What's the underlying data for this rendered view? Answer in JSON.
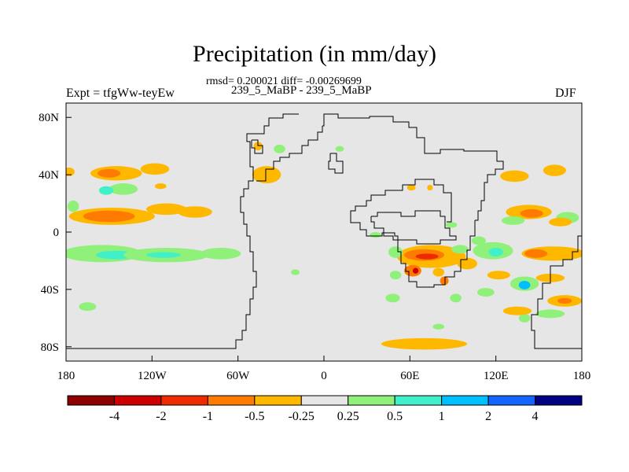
{
  "chart_data": {
    "type": "heatmap",
    "title": "Precipitation (in mm/day)",
    "stats_line": "rmsd= 0.200021 diff= -0.00269699",
    "case_line": "239_5_MaBP - 239_5_MaBP",
    "left_label": "Expt = tfgWw-teyEw",
    "right_label": "DJF",
    "x_ticks": [
      "180",
      "120W",
      "60W",
      "0",
      "60E",
      "120E",
      "180"
    ],
    "y_ticks": [
      "80N",
      "40N",
      "0",
      "40S",
      "80S"
    ],
    "xlim": [
      -180,
      180
    ],
    "ylim": [
      -90,
      90
    ],
    "colorbar": {
      "labels": [
        "-4",
        "-2",
        "-1",
        "-0.5",
        "-0.25",
        "0.25",
        "0.5",
        "1",
        "2",
        "4"
      ],
      "colors": [
        "#8b0000",
        "#cc0000",
        "#ee2a00",
        "#ff7a00",
        "#ffb800",
        "#e6e6e6",
        "#8ff07a",
        "#3ff0c8",
        "#00bfff",
        "#1464ff",
        "#000080"
      ]
    },
    "background_color": "#e6e6e6",
    "anomalies": [
      {
        "lon": 161,
        "lat": 43,
        "rlon": 8,
        "rlat": 4,
        "level": 4
      },
      {
        "lon": 133,
        "lat": 39,
        "rlon": 10,
        "rlat": 4,
        "level": 4
      },
      {
        "lon": -178,
        "lat": 42,
        "rlon": 4,
        "rlat": 3,
        "level": 4
      },
      {
        "lon": -145,
        "lat": 41,
        "rlon": 18,
        "rlat": 5,
        "level": 4
      },
      {
        "lon": -150,
        "lat": 41,
        "rlon": 8,
        "rlat": 3,
        "level": 3
      },
      {
        "lon": -118,
        "lat": 44,
        "rlon": 10,
        "rlat": 4,
        "level": 4
      },
      {
        "lon": -140,
        "lat": 30,
        "rlon": 10,
        "rlat": 4,
        "level": 6
      },
      {
        "lon": -152,
        "lat": 29,
        "rlon": 5,
        "rlat": 3,
        "level": 7
      },
      {
        "lon": -114,
        "lat": 32,
        "rlon": 4,
        "rlat": 2,
        "level": 4
      },
      {
        "lon": -148,
        "lat": 11,
        "rlon": 30,
        "rlat": 6,
        "level": 4
      },
      {
        "lon": -150,
        "lat": 11,
        "rlon": 18,
        "rlat": 4,
        "level": 3
      },
      {
        "lon": -175,
        "lat": 18,
        "rlon": 4,
        "rlat": 4,
        "level": 6
      },
      {
        "lon": -110,
        "lat": 16,
        "rlon": 14,
        "rlat": 4,
        "level": 4
      },
      {
        "lon": -90,
        "lat": 14,
        "rlon": 12,
        "rlat": 4,
        "level": 4
      },
      {
        "lon": -155,
        "lat": -15,
        "rlon": 28,
        "rlat": 6,
        "level": 6
      },
      {
        "lon": -145,
        "lat": -16,
        "rlon": 14,
        "rlat": 3,
        "level": 7
      },
      {
        "lon": -110,
        "lat": -16,
        "rlon": 30,
        "rlat": 5,
        "level": 6
      },
      {
        "lon": -112,
        "lat": -16,
        "rlon": 12,
        "rlat": 2,
        "level": 7
      },
      {
        "lon": -72,
        "lat": -15,
        "rlon": 14,
        "rlat": 4,
        "level": 6
      },
      {
        "lon": -165,
        "lat": -52,
        "rlon": 6,
        "rlat": 3,
        "level": 6
      },
      {
        "lon": -40,
        "lat": 40,
        "rlon": 10,
        "rlat": 6,
        "level": 4
      },
      {
        "lon": -46,
        "lat": 60,
        "rlon": 3,
        "rlat": 3,
        "level": 4
      },
      {
        "lon": -31,
        "lat": 58,
        "rlon": 4,
        "rlat": 3,
        "level": 6
      },
      {
        "lon": 11,
        "lat": 58,
        "rlon": 3,
        "rlat": 2,
        "level": 6
      },
      {
        "lon": 61,
        "lat": 31,
        "rlon": 3,
        "rlat": 2,
        "level": 4
      },
      {
        "lon": 74,
        "lat": 31,
        "rlon": 2,
        "rlat": 2,
        "level": 4
      },
      {
        "lon": 36,
        "lat": -2,
        "rlon": 4,
        "rlat": 2,
        "level": 6
      },
      {
        "lon": 89,
        "lat": 5,
        "rlon": 4,
        "rlat": 2,
        "level": 6
      },
      {
        "lon": 75,
        "lat": -17,
        "rlon": 24,
        "rlat": 8,
        "level": 4
      },
      {
        "lon": 70,
        "lat": -16,
        "rlon": 14,
        "rlat": 4,
        "level": 3
      },
      {
        "lon": 72,
        "lat": -17,
        "rlon": 8,
        "rlat": 2,
        "level": 2
      },
      {
        "lon": 50,
        "lat": -14,
        "rlon": 5,
        "rlat": 4,
        "level": 6
      },
      {
        "lon": 62,
        "lat": -27,
        "rlon": 6,
        "rlat": 4,
        "level": 3
      },
      {
        "lon": 64,
        "lat": -27,
        "rlon": 2,
        "rlat": 2,
        "level": 1
      },
      {
        "lon": 80,
        "lat": -28,
        "rlon": 4,
        "rlat": 3,
        "level": 4
      },
      {
        "lon": 84,
        "lat": -34,
        "rlon": 3,
        "rlat": 3,
        "level": 3
      },
      {
        "lon": 50,
        "lat": -30,
        "rlon": 4,
        "rlat": 3,
        "level": 6
      },
      {
        "lon": 100,
        "lat": -22,
        "rlon": 7,
        "rlat": 4,
        "level": 4
      },
      {
        "lon": 118,
        "lat": -13,
        "rlon": 14,
        "rlat": 6,
        "level": 6
      },
      {
        "lon": 120,
        "lat": -14,
        "rlon": 5,
        "rlat": 3,
        "level": 7
      },
      {
        "lon": 160,
        "lat": -15,
        "rlon": 22,
        "rlat": 5,
        "level": 4
      },
      {
        "lon": 148,
        "lat": -15,
        "rlon": 8,
        "rlat": 3,
        "level": 3
      },
      {
        "lon": 122,
        "lat": -30,
        "rlon": 8,
        "rlat": 3,
        "level": 4
      },
      {
        "lon": 140,
        "lat": -36,
        "rlon": 10,
        "rlat": 5,
        "level": 6
      },
      {
        "lon": 140,
        "lat": -37,
        "rlon": 4,
        "rlat": 3,
        "level": 8
      },
      {
        "lon": 158,
        "lat": -32,
        "rlon": 10,
        "rlat": 3,
        "level": 4
      },
      {
        "lon": 168,
        "lat": -48,
        "rlon": 12,
        "rlat": 4,
        "level": 4
      },
      {
        "lon": 168,
        "lat": -48,
        "rlon": 5,
        "rlat": 2,
        "level": 3
      },
      {
        "lon": 158,
        "lat": -57,
        "rlon": 10,
        "rlat": 3,
        "level": 6
      },
      {
        "lon": 140,
        "lat": -60,
        "rlon": 4,
        "rlat": 3,
        "level": 6
      },
      {
        "lon": 135,
        "lat": -55,
        "rlon": 10,
        "rlat": 3,
        "level": 4
      },
      {
        "lon": 92,
        "lat": -46,
        "rlon": 4,
        "rlat": 3,
        "level": 6
      },
      {
        "lon": 113,
        "lat": -42,
        "rlon": 6,
        "rlat": 3,
        "level": 6
      },
      {
        "lon": 143,
        "lat": 14,
        "rlon": 16,
        "rlat": 5,
        "level": 4
      },
      {
        "lon": 145,
        "lat": 13,
        "rlon": 8,
        "rlat": 3,
        "level": 3
      },
      {
        "lon": 170,
        "lat": 10,
        "rlon": 8,
        "rlat": 4,
        "level": 6
      },
      {
        "lon": 165,
        "lat": 7,
        "rlon": 8,
        "rlat": 3,
        "level": 4
      },
      {
        "lon": 132,
        "lat": 8,
        "rlon": 8,
        "rlat": 3,
        "level": 6
      },
      {
        "lon": 70,
        "lat": -78,
        "rlon": 30,
        "rlat": 4,
        "level": 4
      },
      {
        "lon": 80,
        "lat": -66,
        "rlon": 4,
        "rlat": 2,
        "level": 6
      },
      {
        "lon": 48,
        "lat": -46,
        "rlon": 5,
        "rlat": 3,
        "level": 6
      },
      {
        "lon": 108,
        "lat": -6,
        "rlon": 5,
        "rlat": 3,
        "level": 6
      },
      {
        "lon": 95,
        "lat": -12,
        "rlon": 6,
        "rlat": 3,
        "level": 6
      },
      {
        "lon": -20,
        "lat": -28,
        "rlon": 3,
        "rlat": 2,
        "level": 6
      }
    ]
  }
}
